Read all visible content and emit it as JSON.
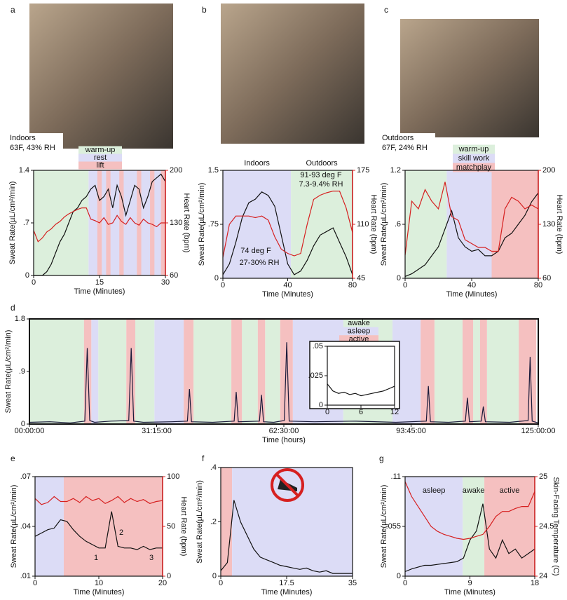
{
  "chart_data": [
    {
      "panel": "a",
      "type": "line",
      "caption": [
        "Indoors",
        "63F, 43% RH"
      ],
      "phases": [
        {
          "name": "warm-up",
          "color": "#dcefdc",
          "spans": [
            [
              0,
              12.5
            ]
          ]
        },
        {
          "name": "rest",
          "color": "#dcdcf6",
          "spans": [
            [
              12.5,
              30
            ]
          ]
        },
        {
          "name": "lift",
          "color": "#f5c0c0",
          "spans": [
            [
              14.5,
              15.5
            ],
            [
              16.5,
              17.5
            ],
            [
              19.5,
              20.5
            ],
            [
              23.5,
              24.5
            ],
            [
              26.5,
              27.5
            ],
            [
              29,
              30
            ]
          ]
        }
      ],
      "xlabel": "Time (Minutes)",
      "ylabel": "Sweat Rate(µL/cm²/min)",
      "y2label": "Heart Rate (bpm)",
      "x": [
        0,
        1,
        2,
        3,
        4,
        5,
        6,
        7,
        8,
        9,
        10,
        11,
        12,
        13,
        14,
        15,
        16,
        17,
        18,
        19,
        20,
        21,
        22,
        23,
        24,
        25,
        26,
        27,
        28,
        29,
        30
      ],
      "series": [
        {
          "color": "#111111",
          "values": [
            0,
            0,
            0,
            0.05,
            0.15,
            0.3,
            0.45,
            0.55,
            0.7,
            0.85,
            0.9,
            1.0,
            1.05,
            1.15,
            1.2,
            1.0,
            1.05,
            1.15,
            0.9,
            1.2,
            1.05,
            0.8,
            1.0,
            1.2,
            1.15,
            0.9,
            1.05,
            1.25,
            1.3,
            1.35,
            1.25
          ]
        },
        {
          "color": "#d62020",
          "axis": "y2",
          "values": [
            120,
            105,
            110,
            118,
            122,
            128,
            132,
            138,
            142,
            145,
            148,
            150,
            150,
            135,
            133,
            130,
            137,
            128,
            130,
            140,
            132,
            128,
            137,
            130,
            127,
            135,
            130,
            128,
            125,
            130,
            130
          ]
        }
      ],
      "xlim": [
        0,
        30
      ],
      "xticks": [
        0,
        15,
        30
      ],
      "ylim": [
        0,
        1.4
      ],
      "yticks": [
        0,
        {
          "value": 0.7,
          "label": ".7"
        },
        1.4
      ],
      "y2lim": [
        60,
        200
      ],
      "y2ticks": [
        60,
        130,
        200
      ]
    },
    {
      "panel": "b",
      "type": "line",
      "phases": [
        {
          "name": "Indoors",
          "color": "#dcdcf6",
          "spans": [
            [
              0,
              42
            ]
          ]
        },
        {
          "name": "Outdoors",
          "color": "#dcefdc",
          "spans": [
            [
              42,
              80
            ]
          ]
        }
      ],
      "annotations": [
        {
          "text": "91-93 deg F",
          "color": "#d62020"
        },
        {
          "text": "7.3-9.4% RH",
          "color": "#1a3ad0"
        },
        {
          "text": "74 deg F",
          "color": "#d62020"
        },
        {
          "text": "27-30% RH",
          "color": "#1a3ad0"
        }
      ],
      "xlabel": "Time (Minutes)",
      "ylabel": "Sweat Rate(µL/cm²/min)",
      "y2label": "Heart Rate (bpm)",
      "x": [
        0,
        4,
        8,
        12,
        16,
        20,
        24,
        28,
        32,
        36,
        40,
        44,
        48,
        52,
        56,
        60,
        64,
        68,
        72,
        76,
        80
      ],
      "series": [
        {
          "color": "#111111",
          "values": [
            0.05,
            0.2,
            0.5,
            0.85,
            1.05,
            1.1,
            1.2,
            1.15,
            1.0,
            0.6,
            0.2,
            0.05,
            0.1,
            0.25,
            0.45,
            0.6,
            0.65,
            0.7,
            0.5,
            0.3,
            0.05
          ]
        },
        {
          "color": "#d62020",
          "axis": "y2",
          "values": [
            70,
            110,
            120,
            120,
            120,
            118,
            120,
            115,
            95,
            80,
            75,
            72,
            75,
            110,
            140,
            145,
            148,
            150,
            150,
            130,
            100
          ]
        }
      ],
      "xlim": [
        0,
        80
      ],
      "xticks": [
        0,
        40,
        80
      ],
      "ylim": [
        0,
        1.5
      ],
      "yticks": [
        0,
        {
          "value": 0.75,
          "label": ".75"
        },
        1.5
      ],
      "y2lim": [
        45,
        175
      ],
      "y2ticks": [
        45,
        110,
        175
      ]
    },
    {
      "panel": "c",
      "type": "line",
      "caption": [
        "Outdoors",
        "67F, 24% RH"
      ],
      "phases": [
        {
          "name": "warm-up",
          "color": "#dcefdc",
          "spans": [
            [
              0,
              25
            ]
          ]
        },
        {
          "name": "skill work",
          "color": "#dcdcf6",
          "spans": [
            [
              25,
              52
            ]
          ]
        },
        {
          "name": "matchplay",
          "color": "#f5c0c0",
          "spans": [
            [
              52,
              80
            ]
          ]
        }
      ],
      "xlabel": "Time (Minutes)",
      "ylabel": "Sweat Rate(µL/cm²/min)",
      "y2label": "Heart Rate (bpm)",
      "x": [
        0,
        4,
        8,
        12,
        16,
        20,
        24,
        28,
        32,
        36,
        40,
        44,
        48,
        52,
        56,
        60,
        64,
        68,
        72,
        76,
        80
      ],
      "series": [
        {
          "color": "#111111",
          "values": [
            0.02,
            0.05,
            0.1,
            0.15,
            0.25,
            0.35,
            0.55,
            0.75,
            0.45,
            0.35,
            0.3,
            0.32,
            0.25,
            0.25,
            0.3,
            0.45,
            0.5,
            0.6,
            0.7,
            0.85,
            0.95
          ]
        },
        {
          "color": "#d62020",
          "axis": "y2",
          "values": [
            90,
            160,
            150,
            175,
            160,
            150,
            185,
            140,
            135,
            110,
            105,
            100,
            100,
            95,
            95,
            150,
            165,
            160,
            150,
            155,
            150
          ]
        }
      ],
      "xlim": [
        0,
        80
      ],
      "xticks": [
        0,
        40,
        80
      ],
      "ylim": [
        0,
        1.2
      ],
      "yticks": [
        0,
        {
          "value": 0.6,
          "label": ".6"
        },
        1.2
      ],
      "y2lim": [
        60,
        200
      ],
      "y2ticks": [
        60,
        130,
        200
      ]
    },
    {
      "panel": "d",
      "type": "line",
      "phases": [
        {
          "name": "awake",
          "color": "#dcefdc",
          "spans": [
            [
              0,
              13.4
            ],
            [
              16.9,
              23.8
            ],
            [
              26,
              30.7
            ],
            [
              40.3,
              49.6
            ],
            [
              52.2,
              56.1
            ],
            [
              57.9,
              61.6
            ],
            [
              77.1,
              89.2
            ],
            [
              99.5,
              106.4
            ],
            [
              109,
              110.7
            ],
            [
              112.4,
              120.2
            ]
          ]
        },
        {
          "name": "asleep",
          "color": "#dcdcf6",
          "spans": [
            [
              15.2,
              16.9
            ],
            [
              30.7,
              37.9
            ],
            [
              64.7,
              77.1
            ],
            [
              89.2,
              96.1
            ]
          ]
        },
        {
          "name": "active",
          "color": "#f5c0c0",
          "spans": [
            [
              13.4,
              15.2
            ],
            [
              23.8,
              26
            ],
            [
              37.9,
              40.3
            ],
            [
              49.6,
              52.2
            ],
            [
              56.1,
              57.9
            ],
            [
              61.6,
              64.7
            ],
            [
              96.1,
              99.5
            ],
            [
              106.4,
              109
            ],
            [
              110.7,
              112.4
            ],
            [
              120.2,
              124.5
            ]
          ]
        }
      ],
      "xlabel": "Time (hours)",
      "ylabel": "Sweat Rate(µL/cm²/min)",
      "x": [
        0,
        5,
        10,
        13.6,
        14.2,
        14.8,
        16,
        20,
        24.4,
        25,
        25.6,
        28,
        35,
        38.8,
        39.3,
        39.8,
        45,
        50.3,
        50.8,
        51.3,
        56.5,
        57,
        57.5,
        60,
        62.6,
        63.2,
        63.8,
        70,
        80,
        90,
        97.5,
        98,
        98.5,
        103,
        107.1,
        107.6,
        108.1,
        111,
        111.5,
        112,
        118,
        122.5,
        123,
        123.5,
        125
      ],
      "series": [
        {
          "color": "#1a1a3a",
          "values": [
            0.03,
            0.04,
            0.02,
            0.05,
            1.3,
            0.06,
            0.03,
            0.05,
            0.06,
            1.3,
            0.05,
            0.03,
            0.04,
            0.05,
            0.6,
            0.04,
            0.03,
            0.05,
            0.55,
            0.04,
            0.05,
            0.5,
            0.04,
            0.03,
            0.06,
            1.4,
            0.05,
            0.04,
            0.05,
            0.03,
            0.05,
            0.65,
            0.04,
            0.03,
            0.05,
            0.45,
            0.04,
            0.05,
            0.3,
            0.04,
            0.03,
            0.06,
            1.15,
            0.05,
            0.02
          ]
        }
      ],
      "xlim": [
        0,
        125
      ],
      "xticks": [
        {
          "value": 0,
          "label": "00:00:00"
        },
        {
          "value": 31.25,
          "label": "31:15:00"
        },
        {
          "value": 62.5,
          "label": "62:30:00"
        },
        {
          "value": 93.75,
          "label": "93:45:00"
        },
        {
          "value": 125,
          "label": "125:00:00"
        }
      ],
      "ylim": [
        0,
        1.8
      ],
      "yticks": [
        0,
        {
          "value": 0.9,
          "label": ".9"
        },
        1.8
      ]
    },
    {
      "type": "line",
      "x": [
        0,
        1,
        2,
        3,
        4,
        5,
        6,
        7,
        8,
        9,
        10,
        11,
        12
      ],
      "series": [
        {
          "color": "#111111",
          "values": [
            0.018,
            0.012,
            0.01,
            0.011,
            0.009,
            0.01,
            0.008,
            0.009,
            0.01,
            0.011,
            0.012,
            0.014,
            0.016
          ]
        }
      ],
      "xlim": [
        0,
        12
      ],
      "xticks": [
        0,
        6,
        12
      ],
      "ylim": [
        0,
        0.05
      ],
      "yticks": [
        0,
        {
          "value": 0.025,
          "label": ".025"
        },
        {
          "value": 0.05,
          "label": ".05"
        }
      ]
    },
    {
      "panel": "e",
      "type": "line",
      "phases": [
        {
          "color": "#dcdcf6",
          "spans": [
            [
              0,
              4.5
            ]
          ]
        },
        {
          "color": "#f5c0c0",
          "spans": [
            [
              4.5,
              20
            ]
          ]
        }
      ],
      "annotations": [
        {
          "text": "1",
          "color": "#111111"
        },
        {
          "text": "2",
          "color": "#111111"
        },
        {
          "text": "3",
          "color": "#111111"
        }
      ],
      "xlabel": "Time (Minutes)",
      "ylabel": "Sweat Rate(µL/cm²/min)",
      "y2label": "Heart Rate (bpm)",
      "x": [
        0,
        1,
        2,
        3,
        4,
        5,
        6,
        7,
        8,
        9,
        10,
        11,
        12,
        13,
        14,
        15,
        16,
        17,
        18,
        19,
        20
      ],
      "series": [
        {
          "color": "#111111",
          "values": [
            0.034,
            0.036,
            0.038,
            0.039,
            0.044,
            0.043,
            0.038,
            0.034,
            0.031,
            0.029,
            0.027,
            0.027,
            0.049,
            0.028,
            0.027,
            0.027,
            0.026,
            0.028,
            0.026,
            0.027,
            0.027
          ]
        },
        {
          "color": "#d62020",
          "axis": "y2",
          "values": [
            78,
            72,
            74,
            80,
            75,
            75,
            78,
            74,
            80,
            76,
            78,
            73,
            76,
            80,
            74,
            78,
            75,
            77,
            73,
            75,
            76
          ]
        }
      ],
      "xlim": [
        0,
        20
      ],
      "xticks": [
        0,
        10,
        20
      ],
      "ylim": [
        0.01,
        0.07
      ],
      "yticks": [
        {
          "value": 0.01,
          "label": ".01"
        },
        {
          "value": 0.04,
          "label": ".04"
        },
        {
          "value": 0.07,
          "label": ".07"
        }
      ],
      "y2lim": [
        0,
        100
      ],
      "y2ticks": [
        0,
        50,
        100
      ]
    },
    {
      "panel": "f",
      "type": "line",
      "phases": [
        {
          "color": "#f5c0c0",
          "spans": [
            [
              0,
              3
            ]
          ]
        },
        {
          "color": "#dcdcf6",
          "spans": [
            [
              3,
              35
            ]
          ]
        }
      ],
      "xlabel": "Time (Minutes)",
      "ylabel": "Sweat Rate(µL/cm²/min)",
      "x": [
        0,
        1.75,
        3.5,
        5.25,
        7,
        8.75,
        10.5,
        12.25,
        14,
        15.75,
        17.5,
        19.25,
        21,
        22.75,
        24.5,
        26.25,
        28,
        29.75,
        31.5,
        33.25,
        35
      ],
      "series": [
        {
          "color": "#111111",
          "values": [
            0.02,
            0.05,
            0.28,
            0.2,
            0.15,
            0.1,
            0.07,
            0.06,
            0.05,
            0.04,
            0.035,
            0.03,
            0.025,
            0.03,
            0.02,
            0.015,
            0.02,
            0.01,
            0.01,
            0.01,
            0.01
          ]
        }
      ],
      "xlim": [
        0,
        35
      ],
      "xticks": [
        0,
        17.5,
        35
      ],
      "ylim": [
        0,
        0.4
      ],
      "yticks": [
        0,
        {
          "value": 0.2,
          "label": ".2"
        },
        {
          "value": 0.4,
          "label": ".4"
        }
      ]
    },
    {
      "panel": "g",
      "type": "line",
      "phases": [
        {
          "name": "asleep",
          "color": "#dcdcf6",
          "spans": [
            [
              0,
              8
            ]
          ]
        },
        {
          "name": "awake",
          "color": "#dcefdc",
          "spans": [
            [
              8,
              11
            ]
          ]
        },
        {
          "name": "active",
          "color": "#f5c0c0",
          "spans": [
            [
              11,
              18
            ]
          ]
        }
      ],
      "xlabel": "Time (Minutes)",
      "ylabel": "Sweat Rate(µL/cm²/min)",
      "y2label": "Skin-Facing Temperature (C)",
      "x": [
        0,
        0.9,
        1.8,
        2.7,
        3.6,
        4.5,
        5.4,
        6.3,
        7.2,
        8.1,
        9,
        9.9,
        10.8,
        11.7,
        12.6,
        13.5,
        14.4,
        15.3,
        16.2,
        17.1,
        18
      ],
      "series": [
        {
          "color": "#111111",
          "values": [
            0.005,
            0.008,
            0.01,
            0.012,
            0.012,
            0.013,
            0.014,
            0.015,
            0.016,
            0.02,
            0.04,
            0.05,
            0.08,
            0.03,
            0.02,
            0.04,
            0.025,
            0.03,
            0.02,
            0.025,
            0.03
          ]
        },
        {
          "color": "#d62020",
          "axis": "y2",
          "values": [
            24.95,
            24.8,
            24.7,
            24.6,
            24.5,
            24.45,
            24.42,
            24.4,
            24.38,
            24.37,
            24.38,
            24.4,
            24.42,
            24.5,
            24.6,
            24.65,
            24.65,
            24.68,
            24.7,
            24.7,
            24.85
          ]
        }
      ],
      "xlim": [
        0,
        18
      ],
      "xticks": [
        0,
        9,
        18
      ],
      "ylim": [
        0,
        0.11
      ],
      "yticks": [
        0,
        {
          "value": 0.055,
          "label": ".055"
        },
        {
          "value": 0.11,
          "label": ".11"
        }
      ],
      "y2lim": [
        24,
        25
      ],
      "y2ticks": [
        24,
        24.5,
        25
      ]
    }
  ]
}
